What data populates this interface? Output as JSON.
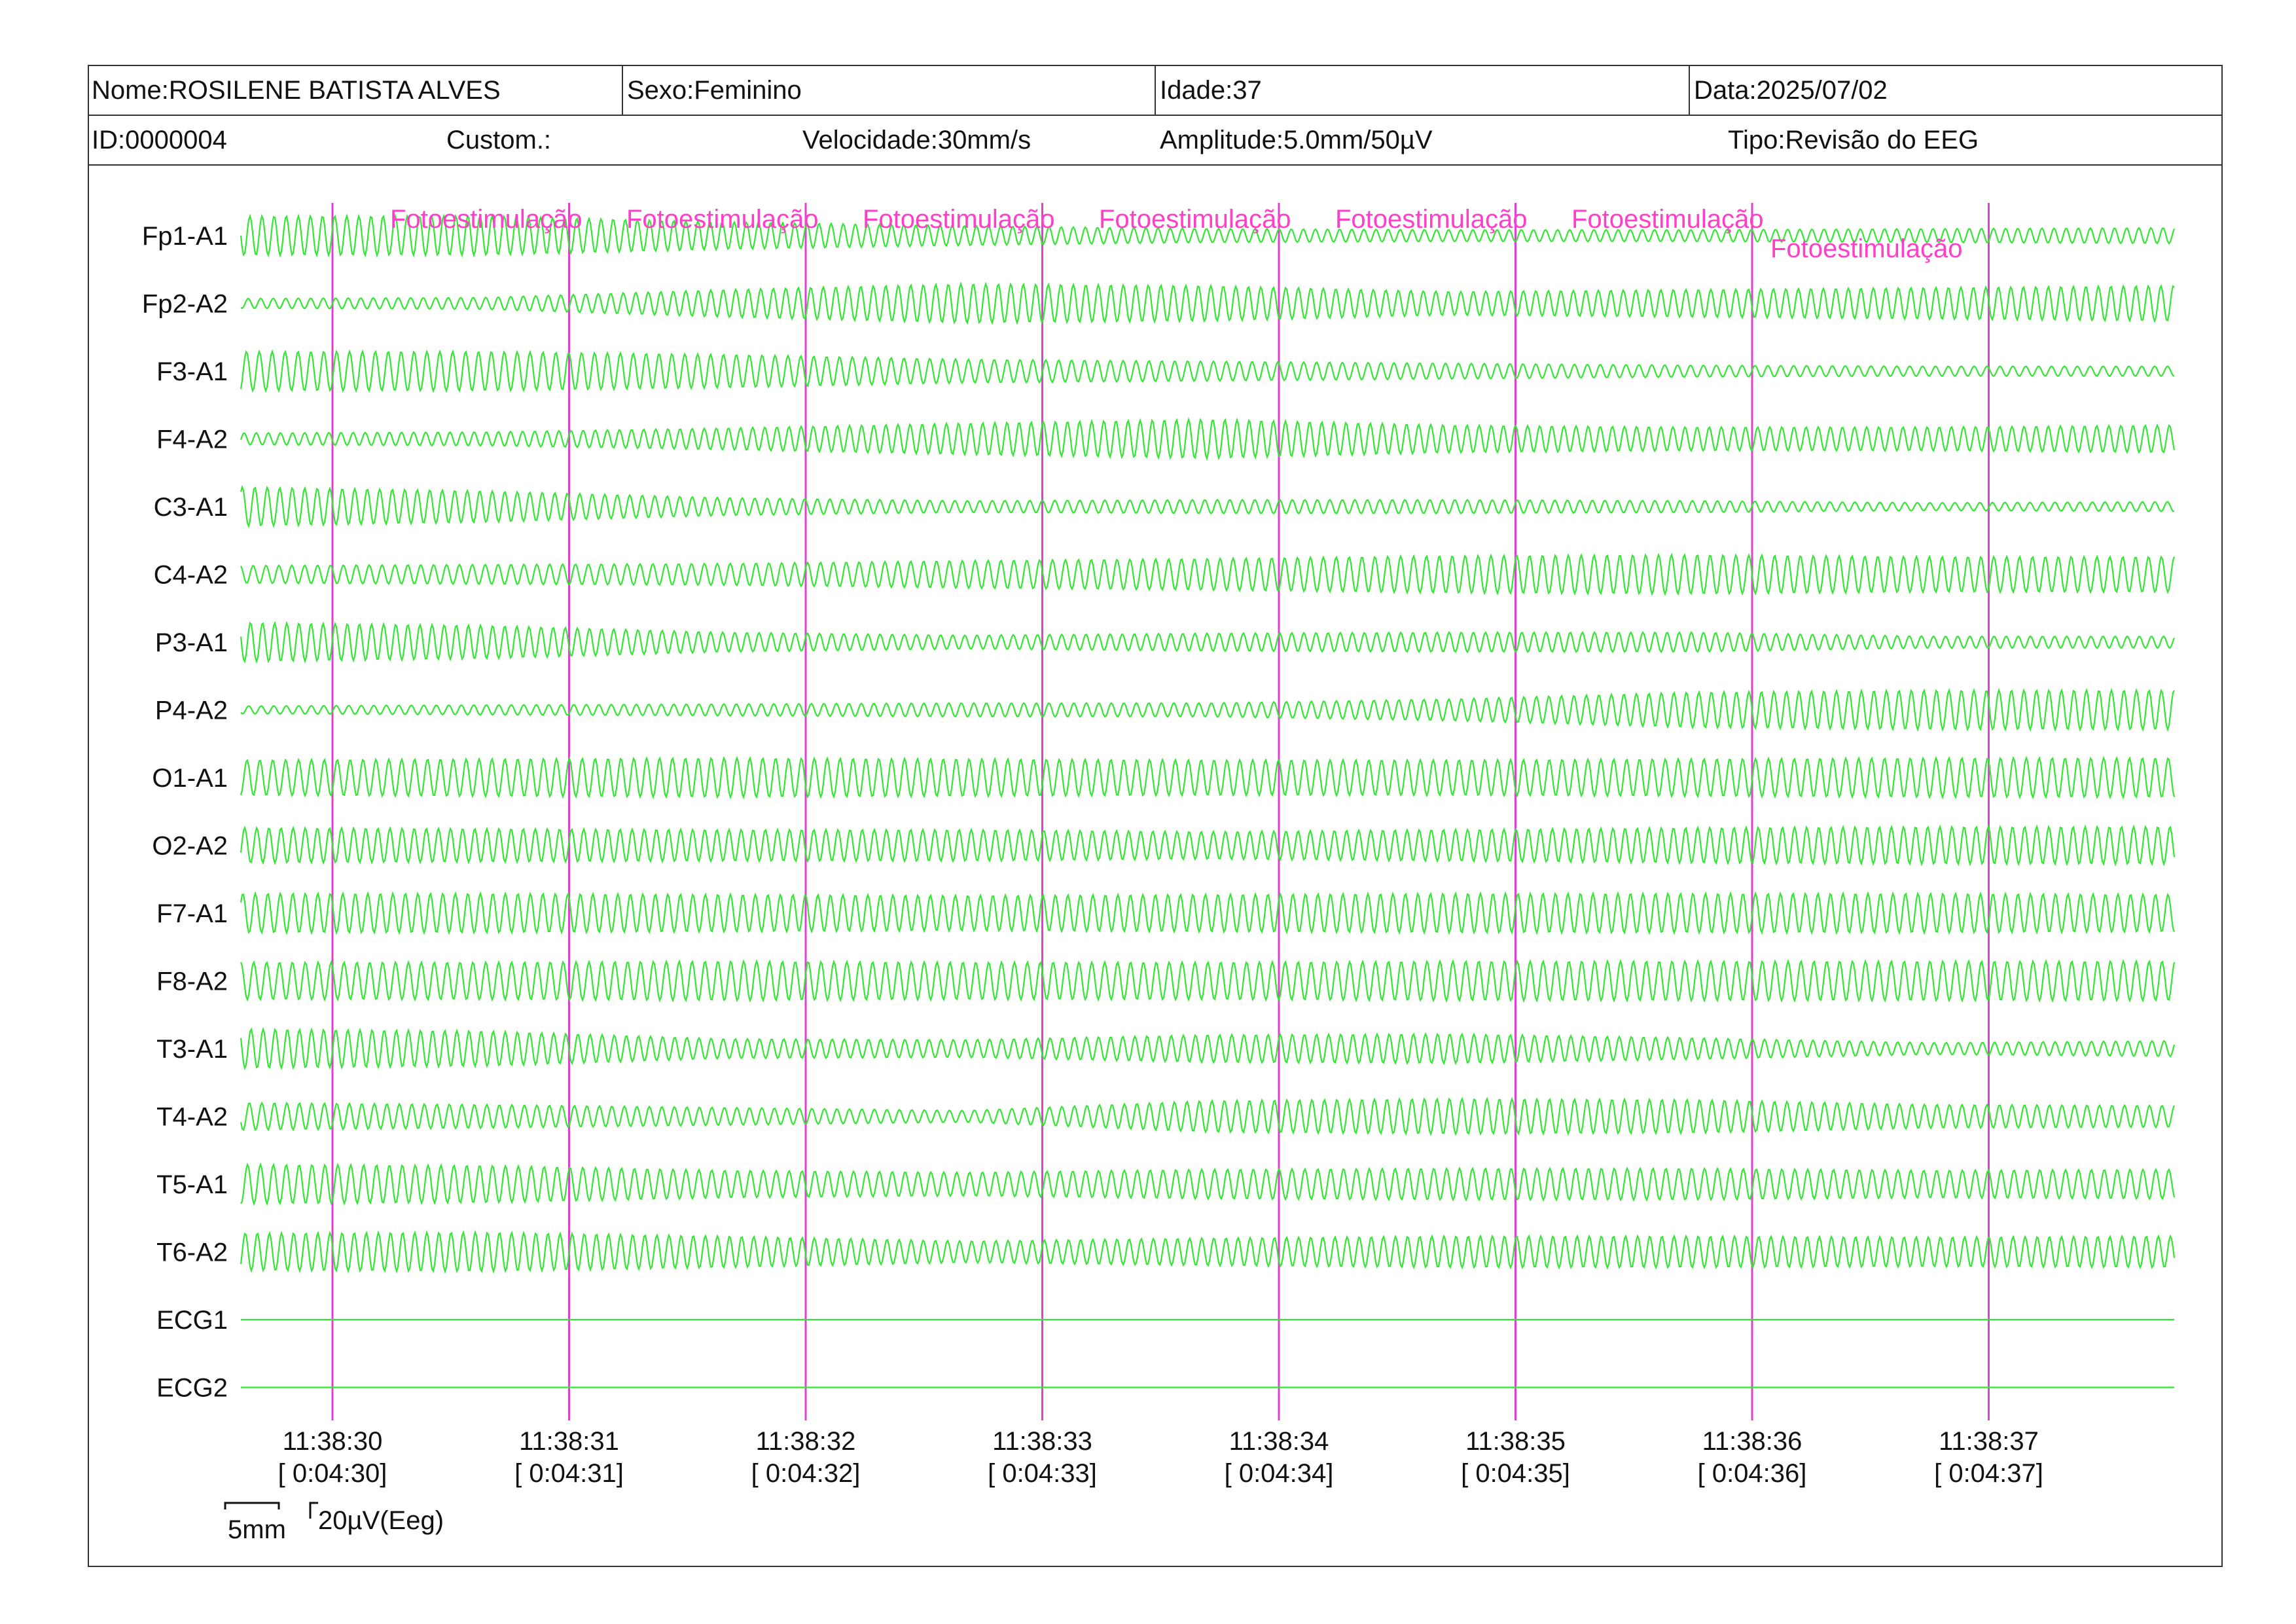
{
  "header": {
    "name": "Nome:ROSILENE BATISTA ALVES",
    "sex": "Sexo:Feminino",
    "age": "Idade:37",
    "date": "Data:2025/07/02",
    "id": "ID:0000004",
    "custom": "Custom.:",
    "speed": "Velocidade:30mm/s",
    "amplitude": "Amplitude:5.0mm/50µV",
    "type": "Tipo:Revisão do EEG"
  },
  "channels": [
    "Fp1-A1",
    "Fp2-A2",
    "F3-A1",
    "F4-A2",
    "C3-A1",
    "C4-A2",
    "P3-A1",
    "P4-A2",
    "O1-A1",
    "O2-A2",
    "F7-A1",
    "F8-A2",
    "T3-A1",
    "T4-A2",
    "T5-A1",
    "T6-A2",
    "ECG1",
    "ECG2"
  ],
  "timeline": [
    {
      "clock": "11:38:30",
      "elapsed": "[ 0:04:30]"
    },
    {
      "clock": "11:38:31",
      "elapsed": "[ 0:04:31]"
    },
    {
      "clock": "11:38:32",
      "elapsed": "[ 0:04:32]"
    },
    {
      "clock": "11:38:33",
      "elapsed": "[ 0:04:33]"
    },
    {
      "clock": "11:38:34",
      "elapsed": "[ 0:04:34]"
    },
    {
      "clock": "11:38:35",
      "elapsed": "[ 0:04:35]"
    },
    {
      "clock": "11:38:36",
      "elapsed": "[ 0:04:36]"
    },
    {
      "clock": "11:38:37",
      "elapsed": "[ 0:04:37]"
    }
  ],
  "events": [
    "Fotoestimulação",
    "Fotoestimulação",
    "Fotoestimulação",
    "Fotoestimulação",
    "Fotoestimulação",
    "Fotoestimulação",
    "Fotoestimulação"
  ],
  "scale": {
    "time": "5mm",
    "amplitude": "20µV(Eeg)"
  },
  "colors": {
    "trace": "#33e633",
    "marker": "#e03fd2",
    "event_text": "#ff3fc8"
  }
}
